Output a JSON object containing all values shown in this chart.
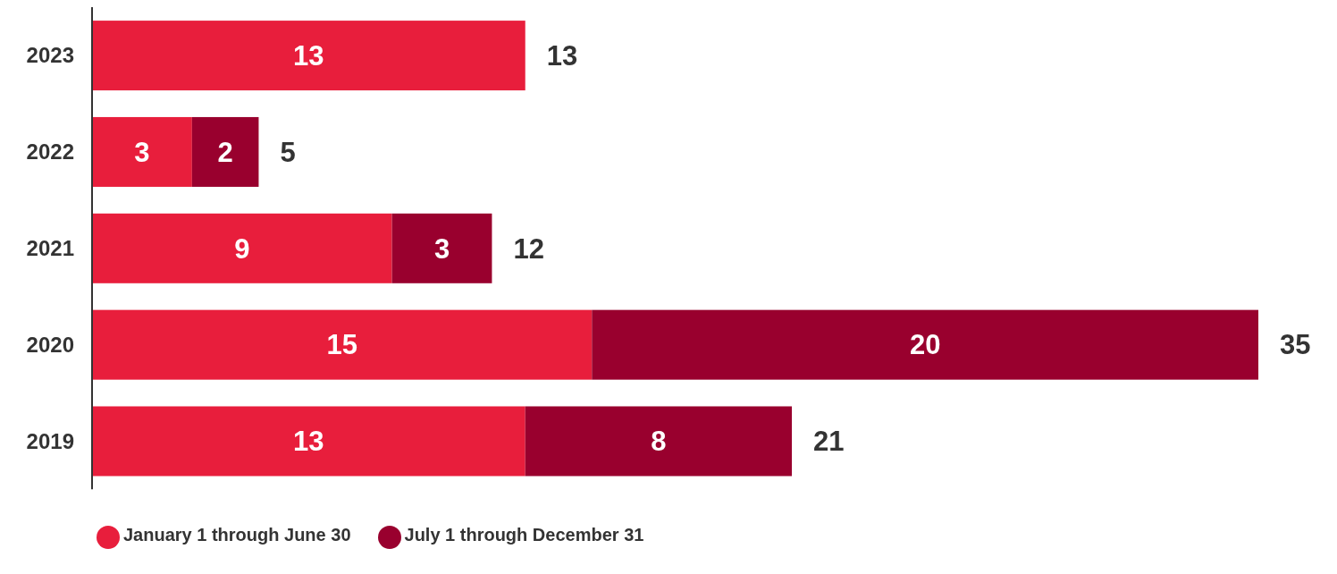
{
  "chart_data": {
    "type": "bar",
    "orientation": "horizontal",
    "stacked": true,
    "categories": [
      "2023",
      "2022",
      "2021",
      "2020",
      "2019"
    ],
    "series": [
      {
        "name": "January 1 through June 30",
        "color": "#e81e3c",
        "values": [
          13,
          3,
          9,
          15,
          13
        ]
      },
      {
        "name": "July 1 through December 31",
        "color": "#99002e",
        "values": [
          null,
          2,
          3,
          20,
          8
        ]
      }
    ],
    "data_labels": true,
    "totals": [
      "13",
      "5",
      "12",
      "35",
      "21"
    ],
    "legend": "bottom left"
  }
}
